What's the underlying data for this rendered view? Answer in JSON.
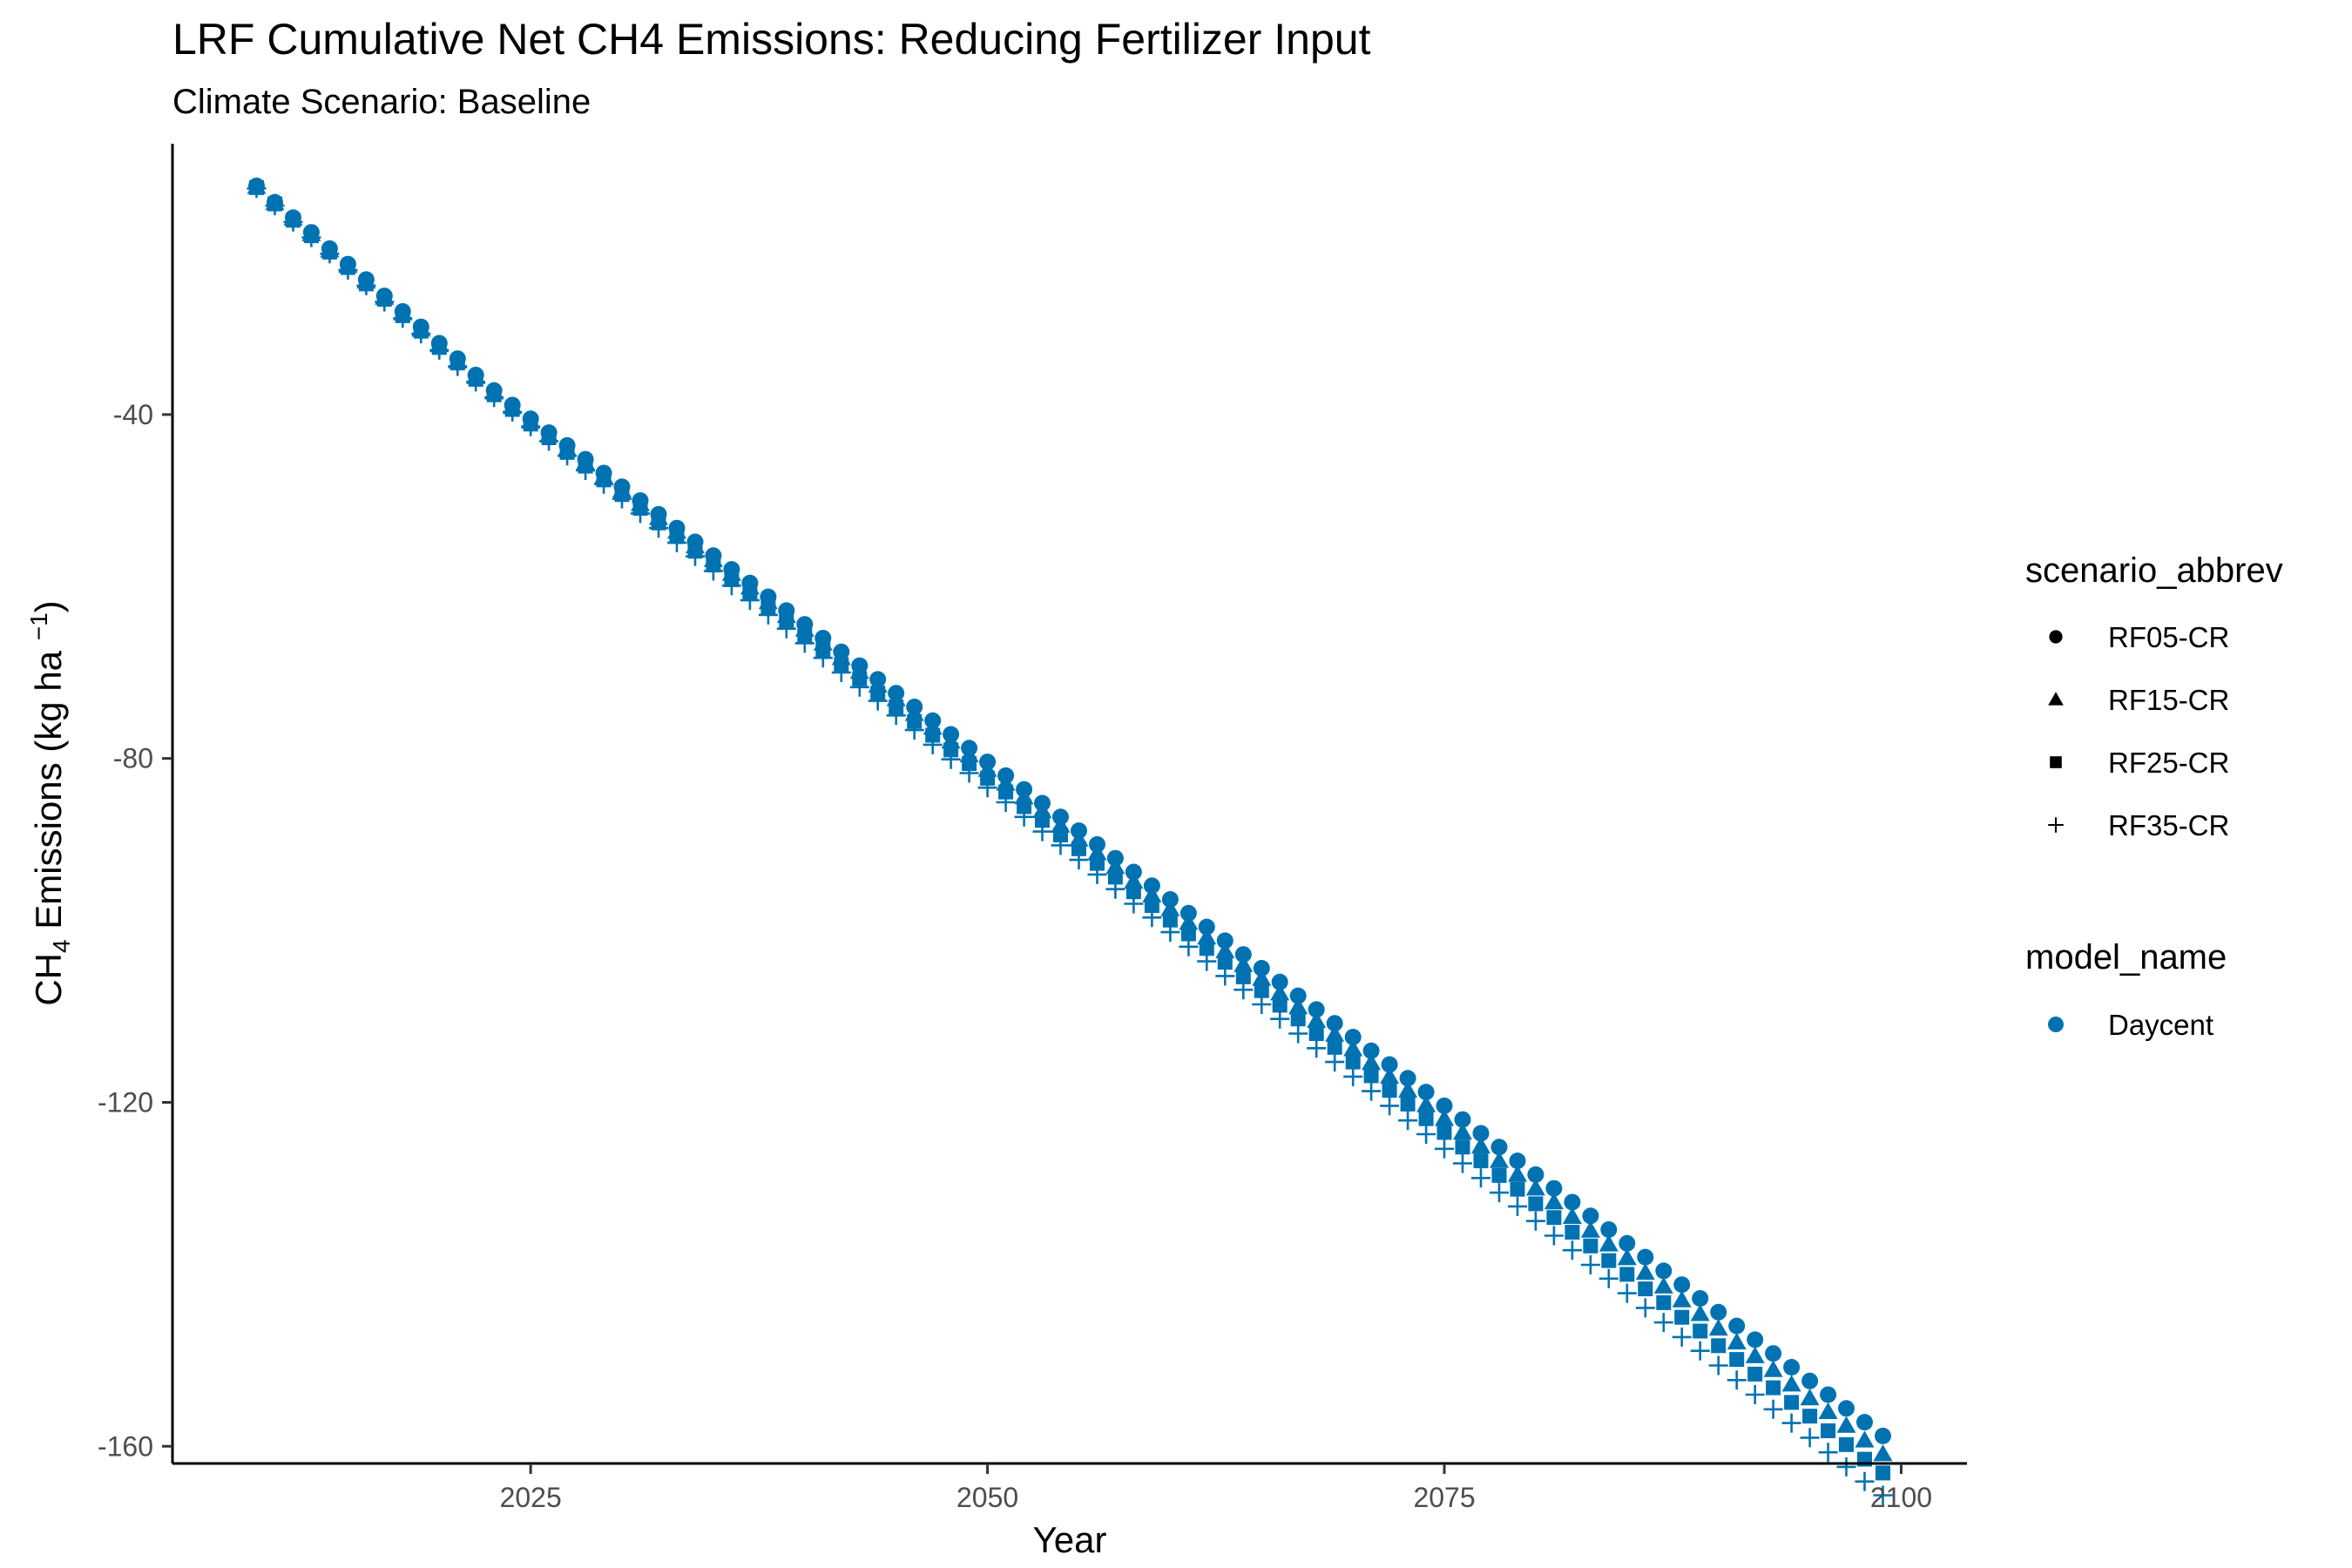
{
  "chart_data": {
    "type": "scatter",
    "title": "LRF  Cumulative Net CH4 Emissions: Reducing Fertilizer Input",
    "subtitle": "Climate Scenario: Baseline",
    "xlabel": "Year",
    "ylabel_parts": [
      "CH",
      "4",
      " Emissions (kg ha ",
      "−1",
      ")"
    ],
    "xlim": [
      2005.4,
      2103.6
    ],
    "ylim": [
      -162,
      -8.5
    ],
    "x_ticks": [
      2025,
      2050,
      2075,
      2100
    ],
    "y_ticks": [
      -40,
      -80,
      -120,
      -160
    ],
    "x_tick_labels": [
      "2025",
      "2050",
      "2075",
      "2100"
    ],
    "y_tick_labels": [
      "-40",
      "-80",
      "-120",
      "-160"
    ],
    "grid": false,
    "point_color": "#0072B2",
    "legend_placement": "right",
    "legend": {
      "shape_title": "scenario_abbrev",
      "shape_entries": [
        {
          "label": "RF05-CR",
          "shape": "circle"
        },
        {
          "label": "RF15-CR",
          "shape": "triangle"
        },
        {
          "label": "RF25-CR",
          "shape": "square"
        },
        {
          "label": "RF35-CR",
          "shape": "plus"
        }
      ],
      "color_title": "model_name",
      "color_entries": [
        {
          "label": "Daycent",
          "color": "#0072B2",
          "shape": "circle"
        }
      ]
    },
    "x": [
      2010,
      2011,
      2012,
      2013,
      2014,
      2015,
      2016,
      2017,
      2018,
      2019,
      2020,
      2021,
      2022,
      2023,
      2024,
      2025,
      2026,
      2027,
      2028,
      2029,
      2030,
      2031,
      2032,
      2033,
      2034,
      2035,
      2036,
      2037,
      2038,
      2039,
      2040,
      2041,
      2042,
      2043,
      2044,
      2045,
      2046,
      2047,
      2048,
      2049,
      2050,
      2051,
      2052,
      2053,
      2054,
      2055,
      2056,
      2057,
      2058,
      2059,
      2060,
      2061,
      2062,
      2063,
      2064,
      2065,
      2066,
      2067,
      2068,
      2069,
      2070,
      2071,
      2072,
      2073,
      2074,
      2075,
      2076,
      2077,
      2078,
      2079,
      2080,
      2081,
      2082,
      2083,
      2084,
      2085,
      2086,
      2087,
      2088,
      2089,
      2090,
      2091,
      2092,
      2093,
      2094,
      2095,
      2096,
      2097,
      2098,
      2099
    ],
    "series": [
      {
        "name": "RF05-CR",
        "shape": "circle",
        "values": [
          -13.4,
          -15.3,
          -17.1,
          -18.8,
          -20.7,
          -22.5,
          -24.3,
          -26.2,
          -28.0,
          -29.8,
          -31.7,
          -33.5,
          -35.4,
          -37.2,
          -38.9,
          -40.5,
          -42.1,
          -43.6,
          -45.2,
          -46.8,
          -48.4,
          -50.0,
          -51.6,
          -53.2,
          -54.8,
          -56.4,
          -58.0,
          -59.6,
          -61.2,
          -62.8,
          -64.4,
          -66.0,
          -67.6,
          -69.2,
          -70.8,
          -72.4,
          -74.0,
          -75.6,
          -77.2,
          -78.8,
          -80.4,
          -82.0,
          -83.6,
          -85.2,
          -86.8,
          -88.4,
          -90.0,
          -91.6,
          -93.2,
          -94.8,
          -96.4,
          -98.0,
          -99.6,
          -101.2,
          -102.8,
          -104.4,
          -106.0,
          -107.6,
          -109.2,
          -110.8,
          -112.4,
          -114.0,
          -115.6,
          -117.2,
          -118.8,
          -120.4,
          -122.0,
          -123.6,
          -125.2,
          -126.8,
          -128.4,
          -130.0,
          -131.6,
          -133.2,
          -134.8,
          -136.4,
          -138.0,
          -139.6,
          -141.2,
          -142.8,
          -144.4,
          -146.0,
          -147.6,
          -149.2,
          -150.8,
          -152.4,
          -154.0,
          -155.6,
          -157.2,
          -158.8
        ]
      },
      {
        "name": "RF15-CR",
        "shape": "triangle",
        "values": [
          -13.5,
          -15.4,
          -17.2,
          -19.0,
          -20.9,
          -22.7,
          -24.5,
          -26.4,
          -28.2,
          -30.1,
          -31.9,
          -33.8,
          -35.6,
          -37.4,
          -39.1,
          -40.8,
          -42.4,
          -44.0,
          -45.6,
          -47.2,
          -48.8,
          -50.4,
          -52.0,
          -53.6,
          -55.3,
          -56.9,
          -58.5,
          -60.1,
          -61.8,
          -63.4,
          -65.0,
          -66.6,
          -68.3,
          -69.9,
          -71.5,
          -73.1,
          -74.8,
          -76.4,
          -78.0,
          -79.6,
          -81.3,
          -82.9,
          -84.5,
          -86.1,
          -87.8,
          -89.4,
          -91.0,
          -92.6,
          -94.3,
          -95.9,
          -97.5,
          -99.1,
          -100.8,
          -102.4,
          -104.0,
          -105.6,
          -107.3,
          -108.9,
          -110.5,
          -112.1,
          -113.8,
          -115.4,
          -117.0,
          -118.6,
          -120.3,
          -121.9,
          -123.5,
          -125.1,
          -126.8,
          -128.4,
          -130.0,
          -131.6,
          -133.3,
          -134.9,
          -136.5,
          -138.1,
          -139.8,
          -141.4,
          -143.0,
          -144.6,
          -146.3,
          -147.9,
          -149.5,
          -151.1,
          -152.8,
          -154.4,
          -156.0,
          -157.6,
          -159.3,
          -160.9
        ]
      },
      {
        "name": "RF25-CR",
        "shape": "square",
        "values": [
          -13.6,
          -15.5,
          -17.4,
          -19.2,
          -21.1,
          -22.9,
          -24.8,
          -26.6,
          -28.5,
          -30.3,
          -32.2,
          -34.0,
          -35.9,
          -37.7,
          -39.4,
          -41.1,
          -42.7,
          -44.4,
          -46.0,
          -47.6,
          -49.3,
          -50.9,
          -52.6,
          -54.2,
          -55.9,
          -57.5,
          -59.2,
          -60.8,
          -62.5,
          -64.1,
          -65.8,
          -67.4,
          -69.1,
          -70.7,
          -72.4,
          -74.0,
          -75.7,
          -77.3,
          -79.0,
          -80.6,
          -82.3,
          -83.9,
          -85.6,
          -87.2,
          -88.9,
          -90.5,
          -92.2,
          -93.8,
          -95.5,
          -97.1,
          -98.8,
          -100.4,
          -102.1,
          -103.7,
          -105.4,
          -107.0,
          -108.7,
          -110.3,
          -112.0,
          -113.6,
          -115.3,
          -116.9,
          -118.6,
          -120.2,
          -121.9,
          -123.5,
          -125.2,
          -126.8,
          -128.5,
          -130.1,
          -131.8,
          -133.4,
          -135.1,
          -136.7,
          -138.4,
          -140.0,
          -141.7,
          -143.3,
          -145.0,
          -146.6,
          -148.3,
          -149.9,
          -151.6,
          -153.2,
          -154.9,
          -156.5,
          -158.2,
          -159.8,
          -161.5,
          -163.1
        ]
      },
      {
        "name": "RF35-CR",
        "shape": "plus",
        "values": [
          -13.7,
          -15.7,
          -17.6,
          -19.4,
          -21.3,
          -23.2,
          -25.0,
          -26.9,
          -28.8,
          -30.6,
          -32.5,
          -34.4,
          -36.2,
          -38.0,
          -39.7,
          -41.4,
          -43.1,
          -44.8,
          -46.5,
          -48.1,
          -49.8,
          -51.5,
          -53.2,
          -54.9,
          -56.5,
          -58.2,
          -59.9,
          -61.6,
          -63.3,
          -64.9,
          -66.6,
          -68.3,
          -70.0,
          -71.7,
          -73.3,
          -75.0,
          -76.7,
          -78.4,
          -80.1,
          -81.7,
          -83.4,
          -85.1,
          -86.8,
          -88.5,
          -90.1,
          -91.8,
          -93.5,
          -95.2,
          -96.9,
          -98.5,
          -100.2,
          -101.9,
          -103.6,
          -105.3,
          -106.9,
          -108.6,
          -110.3,
          -112.0,
          -113.7,
          -115.3,
          -117.0,
          -118.7,
          -120.4,
          -122.1,
          -123.7,
          -125.4,
          -127.1,
          -128.8,
          -130.5,
          -132.1,
          -133.8,
          -135.5,
          -137.2,
          -138.9,
          -140.5,
          -142.2,
          -143.9,
          -145.6,
          -147.3,
          -148.9,
          -150.6,
          -152.3,
          -154.0,
          -155.7,
          -157.3,
          -159.0,
          -160.7,
          -162.4,
          -164.1,
          -165.7
        ]
      }
    ]
  }
}
